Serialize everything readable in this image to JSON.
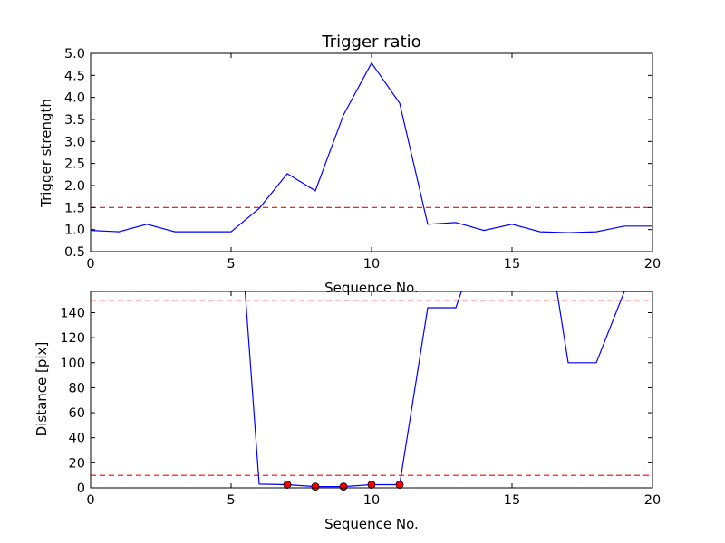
{
  "chart_data": [
    {
      "type": "line",
      "title": "Trigger ratio",
      "xlabel": "Sequence No.",
      "ylabel": "Trigger strength",
      "xlim": [
        0,
        20
      ],
      "ylim": [
        0.5,
        5.0
      ],
      "xticks": [
        "0",
        "5",
        "10",
        "15",
        "20"
      ],
      "yticks": [
        "0.5",
        "1.0",
        "1.5",
        "2.0",
        "2.5",
        "3.0",
        "3.5",
        "4.0",
        "4.5",
        "5.0"
      ],
      "grid": false,
      "series": [
        {
          "color": "#0000ff",
          "style": "solid",
          "x": [
            0,
            1,
            2,
            3,
            4,
            5,
            6,
            7,
            8,
            9,
            10,
            11,
            12,
            13,
            14,
            15,
            16,
            17,
            18,
            19,
            20
          ],
          "y": [
            0.98,
            0.95,
            1.12,
            0.95,
            0.95,
            0.95,
            1.48,
            2.27,
            1.88,
            3.6,
            4.78,
            3.87,
            1.12,
            1.16,
            0.98,
            1.12,
            0.95,
            0.93,
            0.95,
            1.08,
            1.08
          ]
        }
      ],
      "hlines": [
        {
          "y": 1.5,
          "color": "#ff0000",
          "style": "dashed"
        }
      ]
    },
    {
      "type": "line",
      "title": "",
      "xlabel": "Sequence No.",
      "ylabel": "Distance [pix]",
      "xlim": [
        0,
        20
      ],
      "ylim": [
        0,
        157
      ],
      "xticks": [
        "0",
        "5",
        "10",
        "15",
        "20"
      ],
      "yticks": [
        "0",
        "20",
        "40",
        "60",
        "80",
        "100",
        "120",
        "140"
      ],
      "grid": false,
      "series": [
        {
          "color": "#0000ff",
          "style": "solid",
          "x": [
            5.5,
            6,
            7,
            8,
            9,
            10,
            11,
            12,
            13,
            13.2
          ],
          "y": [
            157,
            3,
            2.5,
            1,
            1,
            2.5,
            2.5,
            144,
            144,
            157
          ]
        },
        {
          "color": "#0000ff",
          "style": "solid",
          "x": [
            16.6,
            17,
            18,
            19,
            20
          ],
          "y": [
            157,
            100,
            100,
            157,
            157
          ]
        }
      ],
      "markers": {
        "color": "#ff0000",
        "x": [
          7,
          8,
          9,
          10,
          11
        ],
        "y": [
          2.5,
          1,
          1,
          2.5,
          2.5
        ]
      },
      "hlines": [
        {
          "y": 150,
          "color": "#ff0000",
          "style": "dashed"
        },
        {
          "y": 10,
          "color": "#ff0000",
          "style": "dashed"
        }
      ]
    }
  ]
}
